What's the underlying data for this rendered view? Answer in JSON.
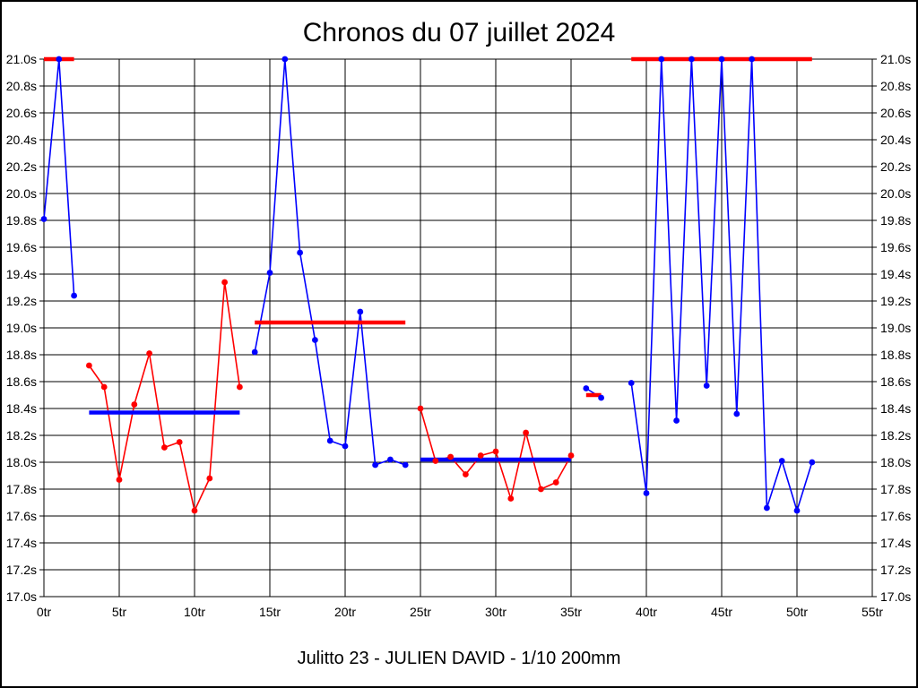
{
  "title": "Chronos du 07 juillet 2024",
  "footer": "Julitto 23 - JULIEN DAVID - 1/10 200mm",
  "colors": {
    "red": "#ff0000",
    "blue": "#0000ff",
    "grid": "#000000",
    "frame": "#000000",
    "background": "#ffffff"
  },
  "chart_data": {
    "type": "line",
    "title": "Chronos du 07 juillet 2024",
    "footer": "Julitto 23 - JULIEN DAVID - 1/10 200mm",
    "x_unit": "tr",
    "y_unit": "s",
    "xlim": [
      0,
      55
    ],
    "ylim": [
      17.0,
      21.0
    ],
    "x_tick_step": 5,
    "y_tick_step": 0.2,
    "grid": true,
    "y_axis_labels_both_sides": true,
    "x_tick_labels": [
      "0tr",
      "5tr",
      "10tr",
      "15tr",
      "20tr",
      "25tr",
      "30tr",
      "35tr",
      "40tr",
      "45tr",
      "50tr",
      "55tr"
    ],
    "y_tick_labels": [
      "17.0s",
      "17.2s",
      "17.4s",
      "17.6s",
      "17.8s",
      "18.0s",
      "18.2s",
      "18.4s",
      "18.6s",
      "18.8s",
      "19.0s",
      "19.2s",
      "19.4s",
      "19.6s",
      "19.8s",
      "20.0s",
      "20.2s",
      "20.4s",
      "20.6s",
      "20.8s",
      "21.0s"
    ],
    "series": [
      {
        "name": "stint-1-blue",
        "color": "blue",
        "x": [
          0,
          1,
          2
        ],
        "y": [
          19.81,
          21.0,
          19.24
        ]
      },
      {
        "name": "stint-2-red",
        "color": "red",
        "x": [
          3,
          4,
          5,
          6,
          7,
          8,
          9,
          10,
          11,
          12,
          13
        ],
        "y": [
          18.72,
          18.56,
          17.87,
          18.43,
          18.81,
          18.11,
          18.15,
          17.64,
          17.88,
          19.34,
          18.56
        ]
      },
      {
        "name": "stint-3-blue",
        "color": "blue",
        "x": [
          14,
          15,
          16,
          17,
          18,
          19,
          20,
          21,
          22,
          23,
          24
        ],
        "y": [
          18.82,
          19.41,
          21.0,
          19.56,
          18.91,
          18.16,
          18.12,
          19.12,
          17.98,
          18.02,
          17.98
        ]
      },
      {
        "name": "stint-4-red",
        "color": "red",
        "x": [
          25,
          26,
          27,
          28,
          29,
          30,
          31,
          32,
          33,
          34,
          35
        ],
        "y": [
          18.4,
          18.01,
          18.04,
          17.91,
          18.05,
          18.08,
          17.73,
          18.22,
          17.8,
          17.85,
          18.05
        ]
      },
      {
        "name": "stint-5-blue",
        "color": "blue",
        "x": [
          36,
          37
        ],
        "y": [
          18.55,
          18.48
        ]
      },
      {
        "name": "stint-6-blue",
        "color": "blue",
        "x": [
          39,
          40,
          41,
          42,
          43,
          44,
          45,
          46,
          47,
          48,
          49,
          50,
          51
        ],
        "y": [
          18.59,
          17.77,
          21.0,
          18.31,
          21.0,
          18.57,
          21.0,
          18.36,
          21.0,
          17.66,
          18.01,
          17.64,
          18.0
        ]
      }
    ],
    "average_lines": [
      {
        "color": "red",
        "value": 21.0,
        "from": 0,
        "to": 2
      },
      {
        "color": "blue",
        "value": 18.37,
        "from": 3,
        "to": 13
      },
      {
        "color": "red",
        "value": 19.04,
        "from": 14,
        "to": 24
      },
      {
        "color": "blue",
        "value": 18.02,
        "from": 25,
        "to": 35
      },
      {
        "color": "red",
        "value": 18.5,
        "from": 36,
        "to": 37
      },
      {
        "color": "red",
        "value": 21.0,
        "from": 39,
        "to": 51
      }
    ]
  }
}
